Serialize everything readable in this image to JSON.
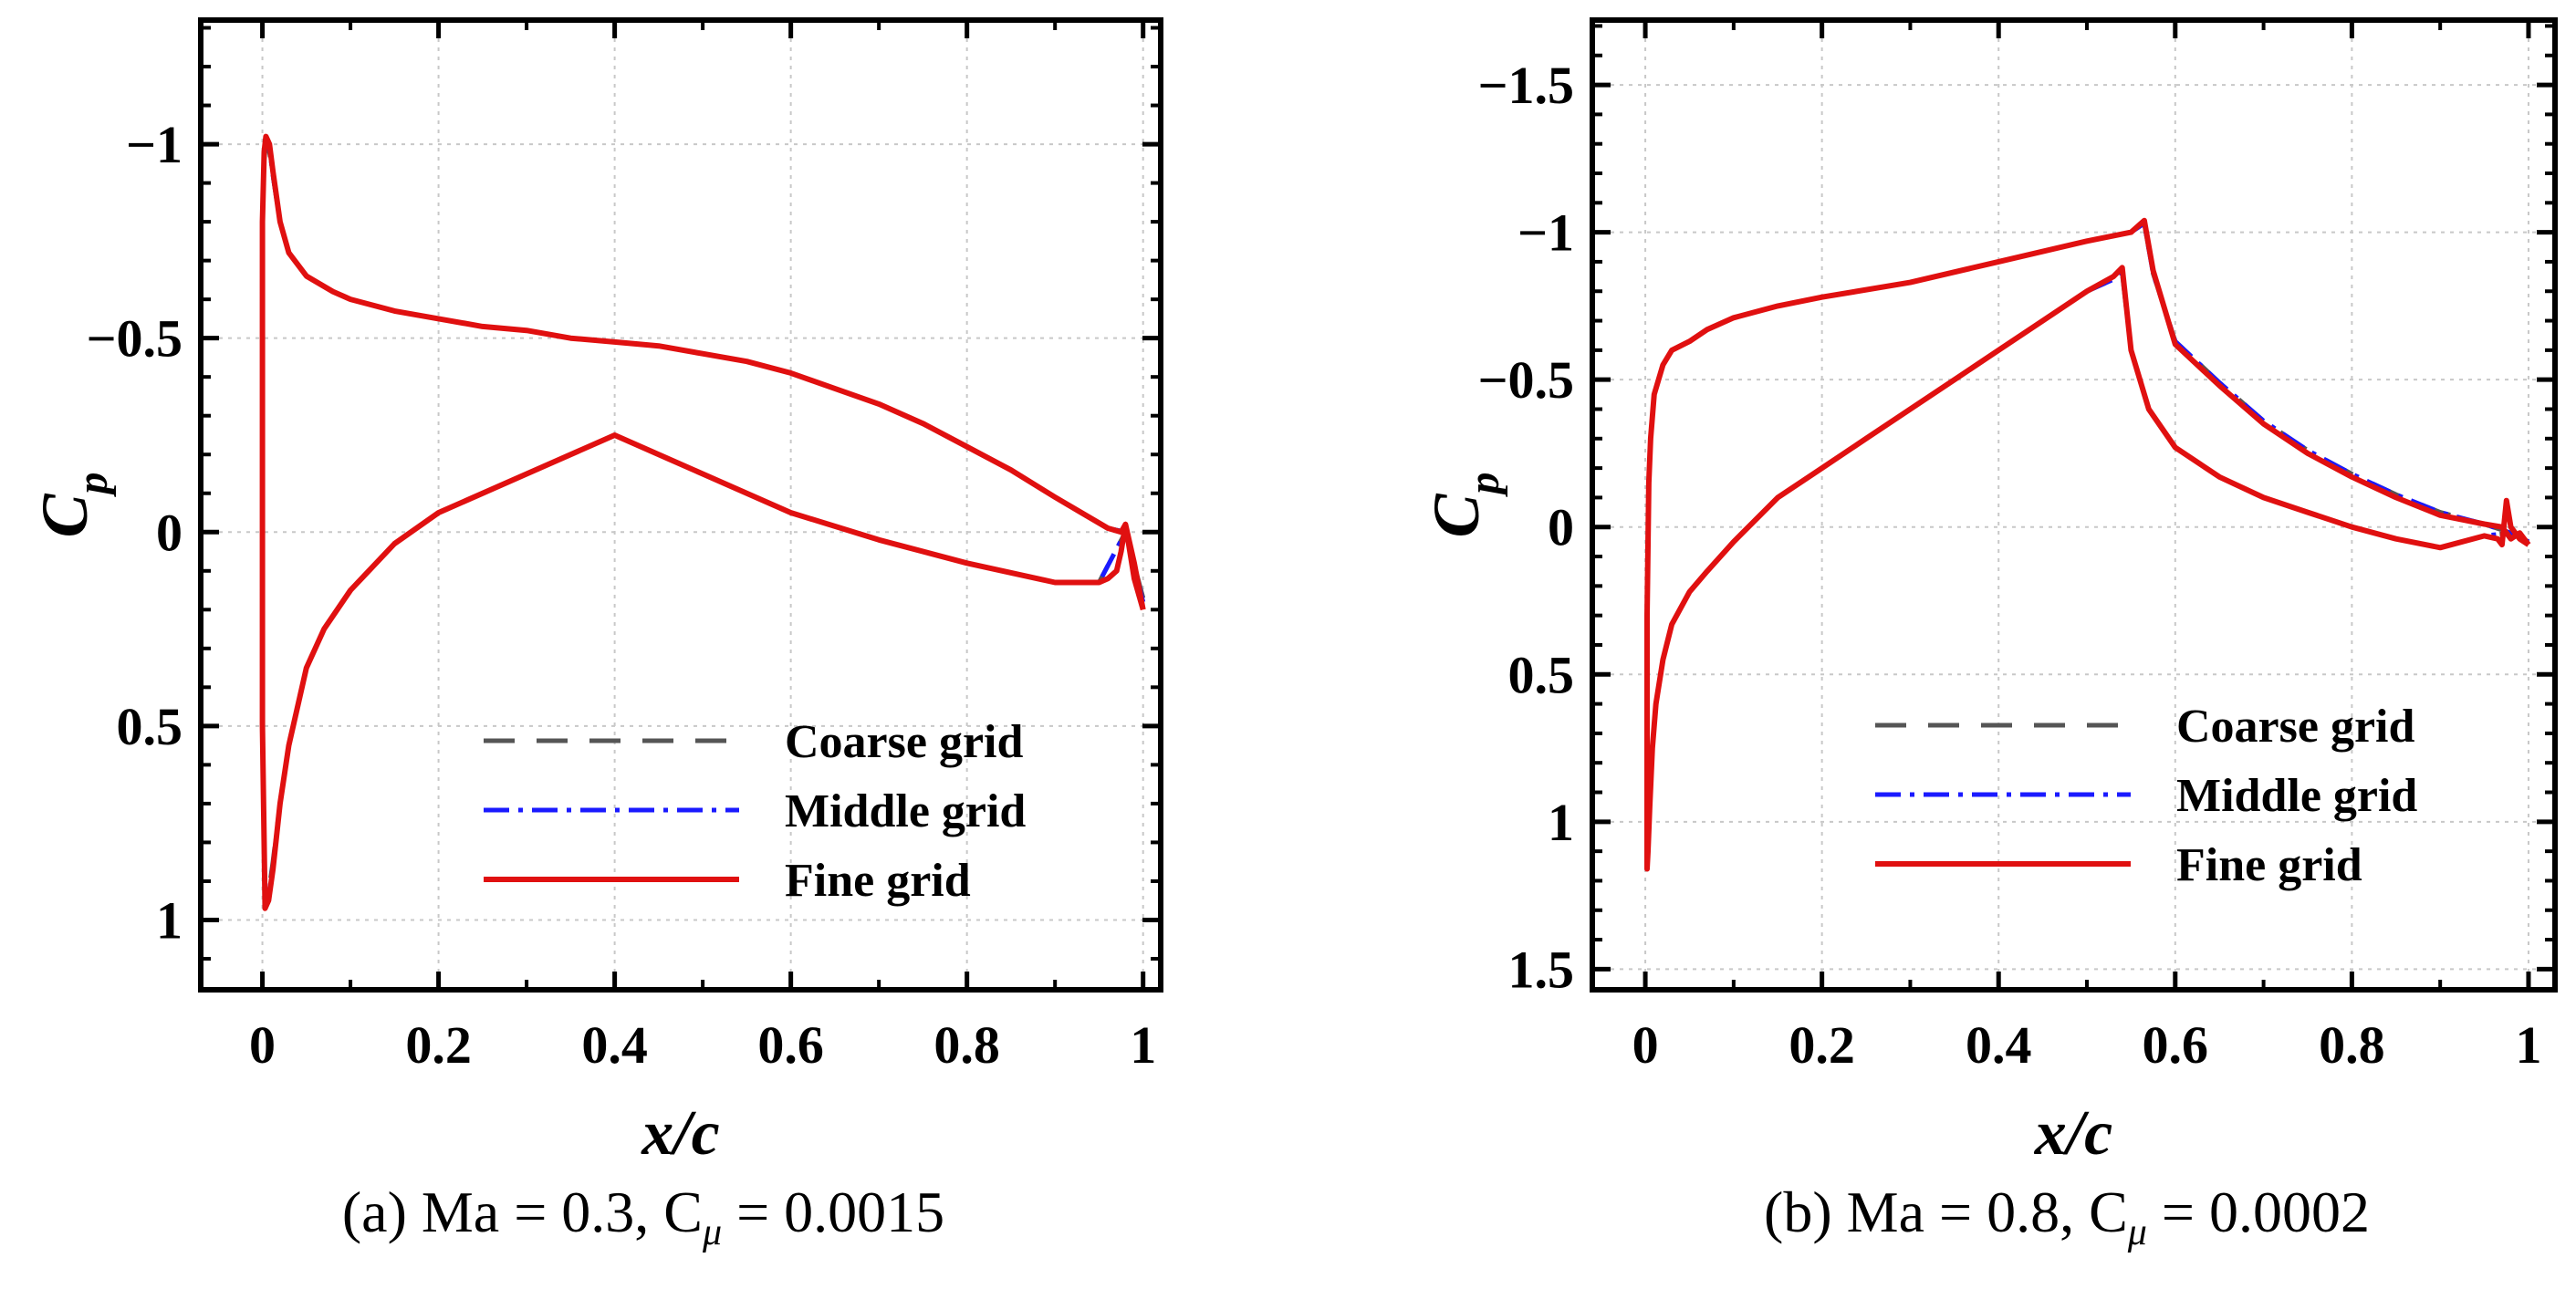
{
  "figure": {
    "caption_a": "(a) Ma = 0.3, C",
    "caption_a_tail": " = 0.0015",
    "caption_b": "(b) Ma = 0.8, C",
    "caption_b_tail": " = 0.0002",
    "mu_symbol": "μ"
  },
  "colors": {
    "coarse": "#555555",
    "middle": "#1a1aff",
    "fine": "#e01010",
    "grid": "#c8c8c8"
  },
  "chart_data": [
    {
      "type": "line",
      "title": "(a) Ma = 0.3, Cμ = 0.0015",
      "xlabel": "x/c",
      "ylabel_main": "C",
      "ylabel_sub": "p",
      "xlim": [
        -0.07,
        1.02
      ],
      "ylim": [
        -1.32,
        1.18
      ],
      "y_inverted": true,
      "grid": true,
      "xticks": [
        0,
        0.2,
        0.4,
        0.6,
        0.8,
        1
      ],
      "xtick_labels": [
        "0",
        "0.2",
        "0.4",
        "0.6",
        "0.8",
        "1"
      ],
      "yticks": [
        -1,
        -0.5,
        0,
        0.5,
        1
      ],
      "ytick_labels": [
        "−1",
        "−0.5",
        "0",
        "0.5",
        "1"
      ],
      "legend": {
        "position": "bottom-right",
        "entries": [
          "Coarse grid",
          "Middle grid",
          "Fine grid"
        ]
      },
      "series": [
        {
          "name": "Fine grid",
          "x": [
            1.0,
            0.99,
            0.98,
            0.975,
            0.97,
            0.96,
            0.95,
            0.9,
            0.8,
            0.7,
            0.6,
            0.5,
            0.4,
            0.3,
            0.2,
            0.15,
            0.1,
            0.07,
            0.05,
            0.03,
            0.02,
            0.012,
            0.007,
            0.003,
            0.0,
            0.0,
            0.002,
            0.004,
            0.006,
            0.008,
            0.012,
            0.02,
            0.03,
            0.05,
            0.08,
            0.1,
            0.15,
            0.2,
            0.25,
            0.3,
            0.35,
            0.4,
            0.45,
            0.5,
            0.55,
            0.6,
            0.65,
            0.7,
            0.75,
            0.8,
            0.85,
            0.9,
            0.93,
            0.96,
            0.975,
            0.98,
            0.985,
            0.99,
            1.0
          ],
          "y": [
            0.2,
            0.08,
            -0.02,
            0.05,
            0.1,
            0.12,
            0.13,
            0.13,
            0.08,
            0.02,
            -0.05,
            -0.15,
            -0.25,
            -0.15,
            -0.05,
            0.03,
            0.15,
            0.25,
            0.35,
            0.55,
            0.7,
            0.87,
            0.95,
            0.97,
            0.5,
            -0.8,
            -0.98,
            -1.02,
            -1.01,
            -1.0,
            -0.93,
            -0.8,
            -0.72,
            -0.66,
            -0.62,
            -0.6,
            -0.57,
            -0.55,
            -0.53,
            -0.52,
            -0.5,
            -0.49,
            -0.48,
            -0.46,
            -0.44,
            -0.41,
            -0.37,
            -0.33,
            -0.28,
            -0.22,
            -0.16,
            -0.09,
            -0.05,
            -0.01,
            0.0,
            -0.02,
            0.05,
            0.12,
            0.2
          ]
        },
        {
          "name": "Middle grid",
          "x": [
            1.0,
            0.98,
            0.95,
            0.9,
            0.8,
            0.7,
            0.6,
            0.5,
            0.4,
            0.3,
            0.2,
            0.15,
            0.1,
            0.07,
            0.05,
            0.03,
            0.02,
            0.012,
            0.007,
            0.003,
            0.0,
            0.0,
            0.002,
            0.004,
            0.006,
            0.008,
            0.012,
            0.02,
            0.03,
            0.05,
            0.08,
            0.1,
            0.15,
            0.2,
            0.25,
            0.3,
            0.35,
            0.4,
            0.45,
            0.5,
            0.55,
            0.6,
            0.65,
            0.7,
            0.75,
            0.8,
            0.85,
            0.9,
            0.93,
            0.96,
            0.98,
            1.0
          ],
          "y": [
            0.18,
            0.0,
            0.13,
            0.13,
            0.08,
            0.02,
            -0.05,
            -0.15,
            -0.25,
            -0.15,
            -0.05,
            0.03,
            0.15,
            0.25,
            0.35,
            0.55,
            0.7,
            0.86,
            0.94,
            0.96,
            0.5,
            -0.8,
            -0.97,
            -1.01,
            -1.0,
            -0.99,
            -0.92,
            -0.8,
            -0.72,
            -0.66,
            -0.62,
            -0.6,
            -0.57,
            -0.55,
            -0.53,
            -0.52,
            -0.5,
            -0.49,
            -0.48,
            -0.46,
            -0.44,
            -0.41,
            -0.37,
            -0.33,
            -0.28,
            -0.22,
            -0.16,
            -0.09,
            -0.05,
            -0.01,
            0.0,
            0.18
          ]
        },
        {
          "name": "Coarse grid",
          "x": [
            1.0,
            0.98,
            0.95,
            0.9,
            0.8,
            0.7,
            0.6,
            0.5,
            0.4,
            0.3,
            0.2,
            0.15,
            0.1,
            0.07,
            0.05,
            0.03,
            0.02,
            0.012,
            0.007,
            0.003,
            0.0,
            0.0,
            0.002,
            0.004,
            0.006,
            0.008,
            0.012,
            0.02,
            0.03,
            0.05,
            0.08,
            0.1,
            0.15,
            0.2,
            0.25,
            0.3,
            0.35,
            0.4,
            0.45,
            0.5,
            0.55,
            0.6,
            0.65,
            0.7,
            0.75,
            0.8,
            0.85,
            0.9,
            0.93,
            0.96,
            0.98,
            1.0
          ],
          "y": [
            0.17,
            0.0,
            0.13,
            0.13,
            0.08,
            0.02,
            -0.05,
            -0.15,
            -0.25,
            -0.15,
            -0.05,
            0.03,
            0.15,
            0.25,
            0.35,
            0.55,
            0.7,
            0.85,
            0.93,
            0.95,
            0.5,
            -0.8,
            -0.96,
            -1.0,
            -0.99,
            -0.98,
            -0.92,
            -0.8,
            -0.72,
            -0.66,
            -0.62,
            -0.6,
            -0.57,
            -0.55,
            -0.53,
            -0.52,
            -0.5,
            -0.49,
            -0.48,
            -0.46,
            -0.44,
            -0.41,
            -0.37,
            -0.33,
            -0.28,
            -0.22,
            -0.16,
            -0.09,
            -0.05,
            -0.01,
            0.0,
            0.17
          ]
        }
      ]
    },
    {
      "type": "line",
      "title": "(b) Ma = 0.8, Cμ = 0.0002",
      "xlabel": "x/c",
      "ylabel_main": "C",
      "ylabel_sub": "p",
      "xlim": [
        -0.06,
        1.03
      ],
      "ylim": [
        -1.72,
        1.57
      ],
      "y_inverted": true,
      "grid": true,
      "xticks": [
        0,
        0.2,
        0.4,
        0.6,
        0.8,
        1
      ],
      "xtick_labels": [
        "0",
        "0.2",
        "0.4",
        "0.6",
        "0.8",
        "1"
      ],
      "yticks": [
        -1.5,
        -1,
        -0.5,
        0,
        0.5,
        1,
        1.5
      ],
      "ytick_labels": [
        "−1.5",
        "−1",
        "−0.5",
        "0",
        "0.5",
        "1",
        "1.5"
      ],
      "legend": {
        "position": "bottom-right",
        "entries": [
          "Coarse grid",
          "Middle grid",
          "Fine grid"
        ]
      },
      "series": [
        {
          "name": "Fine grid",
          "x": [
            1.0,
            0.99,
            0.98,
            0.975,
            0.97,
            0.965,
            0.95,
            0.9,
            0.85,
            0.8,
            0.75,
            0.7,
            0.65,
            0.6,
            0.57,
            0.55,
            0.54,
            0.53,
            0.5,
            0.45,
            0.4,
            0.35,
            0.3,
            0.25,
            0.2,
            0.15,
            0.1,
            0.07,
            0.05,
            0.03,
            0.02,
            0.012,
            0.008,
            0.005,
            0.003,
            0.002,
            0.002,
            0.004,
            0.006,
            0.01,
            0.02,
            0.03,
            0.05,
            0.07,
            0.1,
            0.15,
            0.2,
            0.3,
            0.4,
            0.5,
            0.55,
            0.565,
            0.575,
            0.6,
            0.65,
            0.7,
            0.75,
            0.8,
            0.85,
            0.9,
            0.95,
            0.97,
            0.975,
            0.98,
            0.99,
            1.0
          ],
          "y": [
            0.06,
            0.04,
            0.0,
            -0.09,
            0.06,
            0.04,
            0.03,
            0.07,
            0.04,
            0.0,
            -0.05,
            -0.1,
            -0.17,
            -0.27,
            -0.4,
            -0.6,
            -0.88,
            -0.85,
            -0.8,
            -0.7,
            -0.6,
            -0.5,
            -0.4,
            -0.3,
            -0.2,
            -0.1,
            0.05,
            0.15,
            0.22,
            0.33,
            0.45,
            0.6,
            0.75,
            0.95,
            1.1,
            1.16,
            0.3,
            -0.15,
            -0.3,
            -0.45,
            -0.55,
            -0.6,
            -0.63,
            -0.67,
            -0.71,
            -0.75,
            -0.78,
            -0.83,
            -0.9,
            -0.97,
            -1.0,
            -1.04,
            -0.87,
            -0.62,
            -0.48,
            -0.35,
            -0.25,
            -0.17,
            -0.1,
            -0.04,
            -0.01,
            0.0,
            0.02,
            0.04,
            0.02,
            0.06
          ]
        },
        {
          "name": "Middle grid",
          "x": [
            1.0,
            0.98,
            0.95,
            0.9,
            0.85,
            0.8,
            0.75,
            0.7,
            0.65,
            0.6,
            0.57,
            0.55,
            0.54,
            0.53,
            0.5,
            0.45,
            0.4,
            0.35,
            0.3,
            0.25,
            0.2,
            0.15,
            0.1,
            0.07,
            0.05,
            0.03,
            0.02,
            0.012,
            0.008,
            0.005,
            0.003,
            0.002,
            0.002,
            0.004,
            0.006,
            0.01,
            0.02,
            0.03,
            0.05,
            0.07,
            0.1,
            0.15,
            0.2,
            0.3,
            0.4,
            0.5,
            0.55,
            0.565,
            0.575,
            0.6,
            0.65,
            0.7,
            0.75,
            0.8,
            0.85,
            0.9,
            0.95,
            0.98,
            1.0
          ],
          "y": [
            0.05,
            0.02,
            0.03,
            0.07,
            0.04,
            0.0,
            -0.05,
            -0.1,
            -0.17,
            -0.27,
            -0.4,
            -0.6,
            -0.87,
            -0.84,
            -0.8,
            -0.7,
            -0.6,
            -0.5,
            -0.4,
            -0.3,
            -0.2,
            -0.1,
            0.05,
            0.15,
            0.22,
            0.33,
            0.45,
            0.6,
            0.75,
            0.94,
            1.08,
            1.14,
            0.3,
            -0.15,
            -0.3,
            -0.45,
            -0.55,
            -0.6,
            -0.63,
            -0.67,
            -0.71,
            -0.75,
            -0.78,
            -0.83,
            -0.9,
            -0.97,
            -1.0,
            -1.03,
            -0.86,
            -0.63,
            -0.49,
            -0.36,
            -0.26,
            -0.18,
            -0.11,
            -0.05,
            -0.01,
            0.02,
            0.05
          ]
        },
        {
          "name": "Coarse grid",
          "x": [
            1.0,
            0.98,
            0.95,
            0.9,
            0.85,
            0.8,
            0.75,
            0.7,
            0.65,
            0.6,
            0.57,
            0.55,
            0.54,
            0.53,
            0.5,
            0.45,
            0.4,
            0.35,
            0.3,
            0.25,
            0.2,
            0.15,
            0.1,
            0.07,
            0.05,
            0.03,
            0.02,
            0.012,
            0.008,
            0.005,
            0.003,
            0.002,
            0.002,
            0.004,
            0.006,
            0.01,
            0.02,
            0.03,
            0.05,
            0.07,
            0.1,
            0.15,
            0.2,
            0.3,
            0.4,
            0.5,
            0.55,
            0.565,
            0.575,
            0.6,
            0.65,
            0.7,
            0.75,
            0.8,
            0.85,
            0.9,
            0.95,
            0.98,
            1.0
          ],
          "y": [
            0.05,
            0.02,
            0.03,
            0.07,
            0.04,
            0.0,
            -0.05,
            -0.1,
            -0.17,
            -0.27,
            -0.4,
            -0.6,
            -0.86,
            -0.84,
            -0.8,
            -0.7,
            -0.6,
            -0.5,
            -0.4,
            -0.3,
            -0.2,
            -0.1,
            0.05,
            0.15,
            0.22,
            0.33,
            0.45,
            0.6,
            0.75,
            0.93,
            1.07,
            1.13,
            0.3,
            -0.15,
            -0.3,
            -0.45,
            -0.55,
            -0.6,
            -0.63,
            -0.67,
            -0.71,
            -0.75,
            -0.78,
            -0.83,
            -0.9,
            -0.97,
            -1.0,
            -1.03,
            -0.86,
            -0.63,
            -0.49,
            -0.36,
            -0.26,
            -0.18,
            -0.11,
            -0.05,
            -0.01,
            0.02,
            0.05
          ]
        }
      ]
    }
  ]
}
